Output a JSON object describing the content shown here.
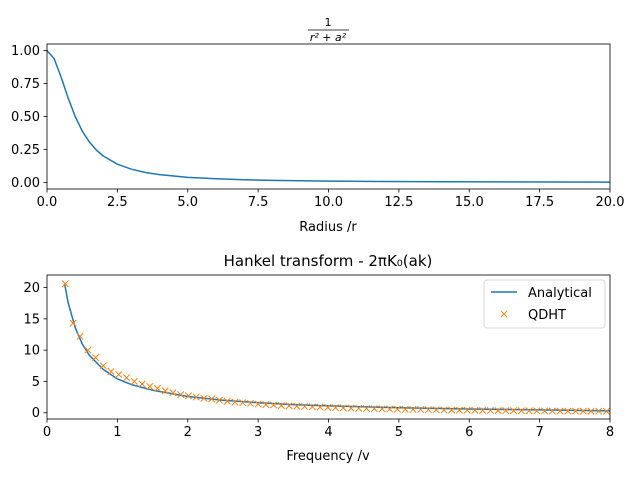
{
  "chart_data": [
    {
      "type": "line",
      "title_numerator": "1",
      "title_denominator": "r² + a²",
      "xlabel": "Radius /r",
      "ylabel": "",
      "xlim": [
        0,
        20
      ],
      "ylim": [
        -0.05,
        1.05
      ],
      "x_ticks": [
        0,
        2.5,
        5,
        7.5,
        10,
        12.5,
        15,
        17.5,
        20
      ],
      "x_tick_labels": [
        "0.0",
        "2.5",
        "5.0",
        "7.5",
        "10.0",
        "12.5",
        "15.0",
        "17.5",
        "20.0"
      ],
      "y_ticks": [
        0,
        0.25,
        0.5,
        0.75,
        1.0
      ],
      "y_tick_labels": [
        "0.00",
        "0.25",
        "0.50",
        "0.75",
        "1.00"
      ],
      "grid": false,
      "legend": "none",
      "series": [
        {
          "color": "#1f77b4",
          "style": "line",
          "x": [
            0,
            0.25,
            0.5,
            0.75,
            1.0,
            1.25,
            1.5,
            1.75,
            2.0,
            2.5,
            3.0,
            3.5,
            4.0,
            5.0,
            6.0,
            7.0,
            8.0,
            10.0,
            12.0,
            14.0,
            16.0,
            18.0,
            20.0
          ],
          "y": [
            1.0,
            0.941,
            0.8,
            0.64,
            0.5,
            0.39,
            0.308,
            0.246,
            0.2,
            0.138,
            0.1,
            0.075,
            0.059,
            0.038,
            0.027,
            0.02,
            0.015,
            0.0099,
            0.0069,
            0.0051,
            0.0039,
            0.0031,
            0.0025
          ]
        }
      ]
    },
    {
      "type": "line",
      "title": "Hankel transform - 2πK₀(ak)",
      "xlabel": "Frequency /v",
      "ylabel": "",
      "xlim": [
        0,
        8
      ],
      "ylim": [
        -1,
        22
      ],
      "x_ticks": [
        0,
        1,
        2,
        3,
        4,
        5,
        6,
        7,
        8
      ],
      "x_tick_labels": [
        "0",
        "1",
        "2",
        "3",
        "4",
        "5",
        "6",
        "7",
        "8"
      ],
      "y_ticks": [
        0,
        5,
        10,
        15,
        20
      ],
      "y_tick_labels": [
        "0",
        "5",
        "10",
        "15",
        "20"
      ],
      "grid": false,
      "legend": "top-right",
      "series": [
        {
          "name": "Analytical",
          "color": "#1f77b4",
          "style": "line",
          "x": [
            0.25,
            0.3,
            0.4,
            0.5,
            0.6,
            0.8,
            1.0,
            1.2,
            1.5,
            2.0,
            2.5,
            3.0,
            3.5,
            4.0,
            5.0,
            6.0,
            7.0,
            8.0
          ],
          "y": [
            20.6,
            17.6,
            13.6,
            11.0,
            9.2,
            6.9,
            5.4,
            4.5,
            3.6,
            2.6,
            2.0,
            1.6,
            1.3,
            1.1,
            0.8,
            0.6,
            0.45,
            0.3
          ]
        },
        {
          "name": "QDHT",
          "color": "#ff7f0e",
          "style": "marker-x",
          "x": [
            0.26,
            0.37,
            0.47,
            0.58,
            0.69,
            0.8,
            0.91,
            1.02,
            1.13,
            1.24,
            1.35,
            1.46,
            1.57,
            1.68,
            1.79,
            1.9,
            2.01,
            2.12,
            2.23,
            2.34,
            2.45,
            2.56,
            2.67,
            2.78,
            2.89,
            3.0,
            3.11,
            3.22,
            3.33,
            3.44,
            3.55,
            3.66,
            3.77,
            3.88,
            3.99,
            4.1,
            4.21,
            4.32,
            4.43,
            4.54,
            4.65,
            4.76,
            4.87,
            4.98,
            5.09,
            5.2,
            5.31,
            5.42,
            5.53,
            5.64,
            5.75,
            5.86,
            5.97,
            6.08,
            6.19,
            6.3,
            6.41,
            6.52,
            6.63,
            6.74,
            6.85,
            6.96,
            7.07,
            7.18,
            7.29,
            7.4,
            7.51,
            7.62,
            7.73,
            7.84,
            7.95
          ],
          "y": [
            20.6,
            14.3,
            12.2,
            10.0,
            8.8,
            7.5,
            6.6,
            6.1,
            5.6,
            5.0,
            4.6,
            4.2,
            3.9,
            3.5,
            3.2,
            2.9,
            2.7,
            2.5,
            2.3,
            2.2,
            2.0,
            1.85,
            1.7,
            1.6,
            1.5,
            1.4,
            1.3,
            1.25,
            1.15,
            1.1,
            1.05,
            1.0,
            0.95,
            0.9,
            0.85,
            0.8,
            0.76,
            0.73,
            0.7,
            0.67,
            0.64,
            0.61,
            0.58,
            0.56,
            0.54,
            0.52,
            0.5,
            0.48,
            0.46,
            0.44,
            0.43,
            0.41,
            0.4,
            0.39,
            0.37,
            0.36,
            0.35,
            0.34,
            0.33,
            0.32,
            0.31,
            0.3,
            0.29,
            0.28,
            0.27,
            0.27,
            0.26,
            0.25,
            0.25,
            0.24,
            0.23
          ]
        }
      ]
    }
  ]
}
